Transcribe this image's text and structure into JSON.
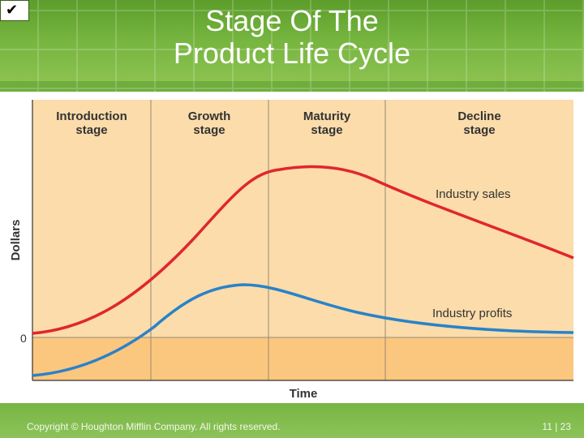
{
  "header": {
    "checkmark_icon": "check-icon",
    "title_line1": "Stage Of The",
    "title_line2": "Product Life Cycle"
  },
  "diagram": {
    "stages": [
      {
        "line1": "Introduction",
        "line2": "stage"
      },
      {
        "line1": "Growth",
        "line2": "stage"
      },
      {
        "line1": "Maturity",
        "line2": "stage"
      },
      {
        "line1": "Decline",
        "line2": "stage"
      }
    ],
    "y_axis_label": "Dollars",
    "zero_label": "0",
    "x_axis_label": "Time",
    "sales_label": "Industry sales",
    "profits_label": "Industry profits",
    "colors": {
      "background": "#fbdcaa",
      "negative_band": "#fbc67e",
      "sales": "#e0262f",
      "profits": "#2a82c8",
      "divider": "#9a8a78"
    }
  },
  "footer": {
    "copyright": "Copyright © Houghton Mifflin Company. All rights reserved.",
    "page": "11 | 23"
  }
}
